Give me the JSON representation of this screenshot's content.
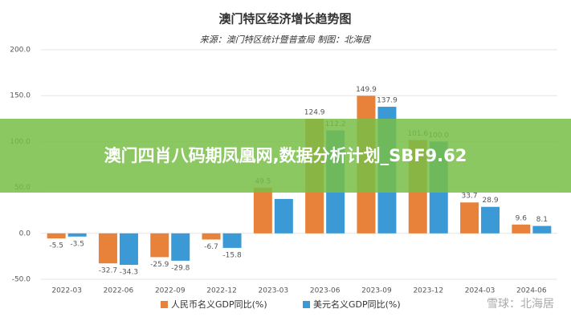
{
  "chart_data": {
    "type": "bar",
    "title": "澳门特区经济增长趋势图",
    "subtitle": "来源：澳门特区统计暨普查局  制图：北海居",
    "categories": [
      "2022-03",
      "2022-06",
      "2022-09",
      "2022-12",
      "2023-03",
      "2023-06",
      "2023-09",
      "2023-12",
      "2024-03",
      "2024-06"
    ],
    "series": [
      {
        "name": "人民币名义GDP同比(%)",
        "color": "#e8823a",
        "values": [
          -5.5,
          -32.7,
          -25.9,
          -6.7,
          49.5,
          124.9,
          149.9,
          101.6,
          33.7,
          9.6
        ],
        "value_labels": [
          "-5.5",
          "-32.7",
          "-25.9",
          "-6.7",
          "49.5",
          "124.9",
          "149.9",
          "101.6",
          "33.7",
          "9.6"
        ]
      },
      {
        "name": "美元名义GDP同比(%)",
        "color": "#3b9ad6",
        "values": [
          -3.5,
          -34.3,
          -29.8,
          -15.8,
          37.5,
          112.2,
          137.9,
          100.0,
          28.9,
          8.1
        ],
        "value_labels": [
          "-3.5",
          "-34.3",
          "-29.8",
          "-15.8",
          null,
          "112.2",
          "137.9",
          "100.0",
          "28.9",
          "8.1"
        ]
      }
    ],
    "ylim": [
      -50,
      200
    ],
    "yticks": [
      {
        "value": -50,
        "label": "-50.0"
      },
      {
        "value": 0,
        "label": "0.0"
      },
      {
        "value": 50,
        "label": "50.0"
      },
      {
        "value": 100,
        "label": "100.0"
      },
      {
        "value": 150,
        "label": "150.0"
      },
      {
        "value": 200,
        "label": "200.0"
      }
    ],
    "grid": true
  },
  "watermark": "雪球：北海居",
  "overlay": {
    "text": "澳门四肖八码期凤凰网,数据分析计划_SBF9.62"
  }
}
